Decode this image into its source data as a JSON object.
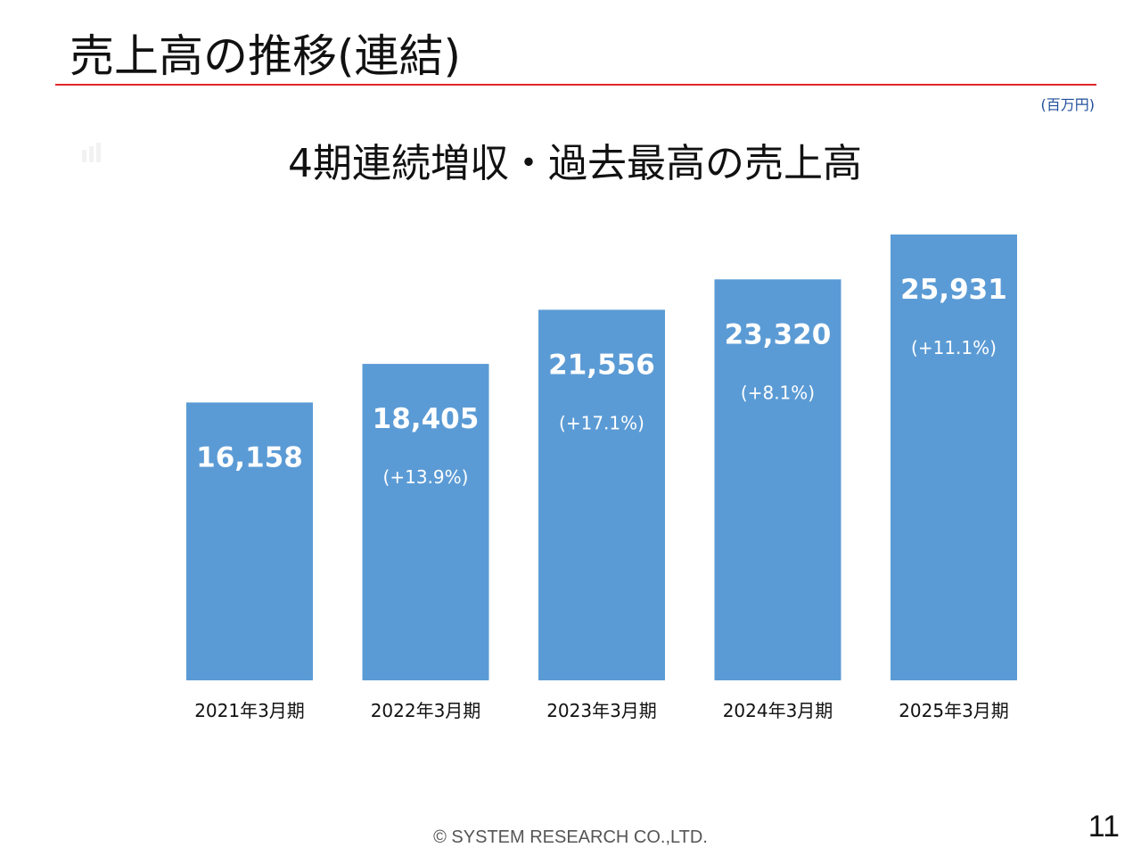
{
  "slide": {
    "title": "売上高の推移(連結)",
    "unit": "(百万円)",
    "headline": "4期連続増収・過去最高の売上高",
    "footer": "© SYSTEM RESEARCH CO.,LTD.",
    "page_number": "11"
  },
  "colors": {
    "bar": "#5b9bd5",
    "title_rule": "#e0262b",
    "unit_text": "#1f4e9a"
  },
  "chart_data": {
    "type": "bar",
    "categories": [
      "2021年3月期",
      "2022年3月期",
      "2023年3月期",
      "2024年3月期",
      "2025年3月期"
    ],
    "values": [
      16158,
      18405,
      21556,
      23320,
      25931
    ],
    "value_labels": [
      "16,158",
      "18,405",
      "21,556",
      "23,320",
      "25,931"
    ],
    "growth_labels": [
      "",
      "(+13.9%)",
      "(+17.1%)",
      "(+8.1%)",
      "(+11.1%)"
    ],
    "ylabel": "",
    "xlabel": "",
    "grid": false,
    "legend": "none"
  }
}
